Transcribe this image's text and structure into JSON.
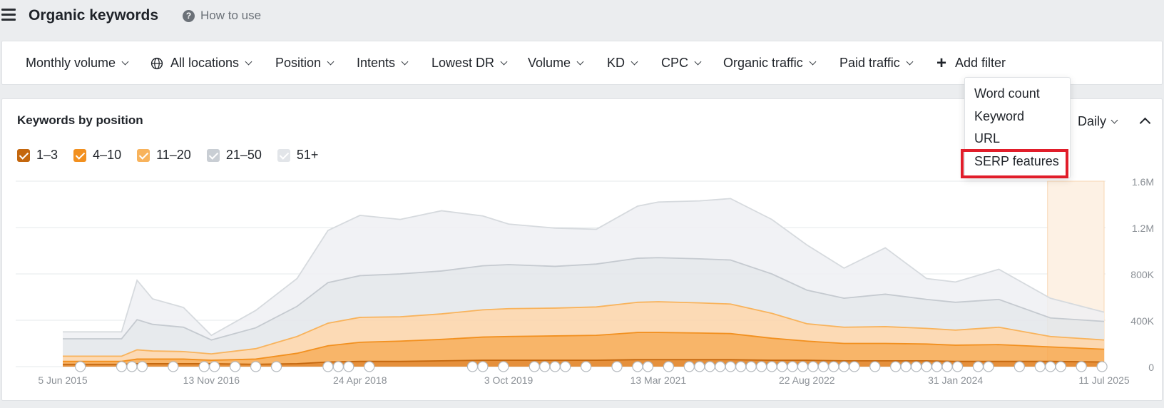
{
  "header": {
    "title": "Organic keywords",
    "help_label": "How to use"
  },
  "filters": [
    {
      "label": "Monthly volume"
    },
    {
      "label": "All locations"
    },
    {
      "label": "Position"
    },
    {
      "label": "Intents"
    },
    {
      "label": "Lowest DR"
    },
    {
      "label": "Volume"
    },
    {
      "label": "KD"
    },
    {
      "label": "CPC"
    },
    {
      "label": "Organic traffic"
    },
    {
      "label": "Paid traffic"
    }
  ],
  "add_filter_label": "Add filter",
  "dropdown": {
    "items": [
      "Word count",
      "Keyword",
      "URL",
      "SERP features"
    ],
    "highlighted": "SERP features"
  },
  "card": {
    "title": "Keywords by position",
    "interval_label": "Daily"
  },
  "legend": [
    {
      "label": "1–3",
      "color": "#c4670e"
    },
    {
      "label": "4–10",
      "color": "#f2901f"
    },
    {
      "label": "11–20",
      "color": "#f8b35c"
    },
    {
      "label": "21–50",
      "color": "#c9ced4"
    },
    {
      "label": "51+",
      "color": "#e2e5e9"
    }
  ],
  "chart_data": {
    "type": "area",
    "stacked": true,
    "x_tick_labels": [
      "5 Jun 2015",
      "13 Nov 2016",
      "24 Apr 2018",
      "3 Oct 2019",
      "13 Mar 2021",
      "22 Aug 2022",
      "31 Jan 2024",
      "11 Jul 2025"
    ],
    "y_tick_labels": [
      "1.6M",
      "1.2M",
      "800K",
      "400K",
      "0"
    ],
    "ylim": [
      0,
      1600000
    ],
    "grid": true,
    "x": [
      2015.43,
      2015.8,
      2016.0,
      2016.15,
      2016.3,
      2016.6,
      2016.87,
      2017.3,
      2017.7,
      2018.0,
      2018.31,
      2018.7,
      2019.1,
      2019.5,
      2019.75,
      2020.2,
      2020.6,
      2021.0,
      2021.2,
      2021.6,
      2021.9,
      2022.3,
      2022.64,
      2023.0,
      2023.4,
      2023.8,
      2024.08,
      2024.5,
      2025.0,
      2025.52
    ],
    "series": [
      {
        "name": "1–3",
        "values": [
          20000,
          20000,
          20000,
          25000,
          25000,
          25000,
          25000,
          20000,
          25000,
          40000,
          45000,
          45000,
          50000,
          55000,
          55000,
          55000,
          55000,
          60000,
          60000,
          60000,
          60000,
          55000,
          55000,
          50000,
          50000,
          50000,
          45000,
          45000,
          45000,
          40000
        ]
      },
      {
        "name": "4–10",
        "values": [
          25000,
          25000,
          25000,
          40000,
          40000,
          40000,
          30000,
          45000,
          90000,
          140000,
          165000,
          175000,
          185000,
          200000,
          205000,
          210000,
          215000,
          235000,
          235000,
          230000,
          225000,
          190000,
          165000,
          150000,
          150000,
          145000,
          140000,
          145000,
          125000,
          110000
        ]
      },
      {
        "name": "11–20",
        "values": [
          45000,
          45000,
          45000,
          80000,
          70000,
          65000,
          55000,
          90000,
          145000,
          195000,
          215000,
          210000,
          220000,
          235000,
          240000,
          240000,
          245000,
          260000,
          265000,
          260000,
          255000,
          215000,
          150000,
          140000,
          145000,
          135000,
          130000,
          150000,
          90000,
          80000
        ]
      },
      {
        "name": "21–50",
        "values": [
          150000,
          150000,
          150000,
          260000,
          230000,
          210000,
          120000,
          180000,
          260000,
          350000,
          360000,
          370000,
          370000,
          380000,
          380000,
          360000,
          370000,
          380000,
          380000,
          380000,
          380000,
          340000,
          290000,
          250000,
          280000,
          250000,
          240000,
          240000,
          160000,
          160000
        ]
      },
      {
        "name": "51+",
        "values": [
          60000,
          60000,
          60000,
          340000,
          220000,
          170000,
          40000,
          150000,
          240000,
          450000,
          520000,
          470000,
          520000,
          430000,
          350000,
          330000,
          300000,
          450000,
          480000,
          500000,
          530000,
          470000,
          390000,
          260000,
          400000,
          180000,
          175000,
          260000,
          170000,
          80000
        ]
      }
    ]
  }
}
